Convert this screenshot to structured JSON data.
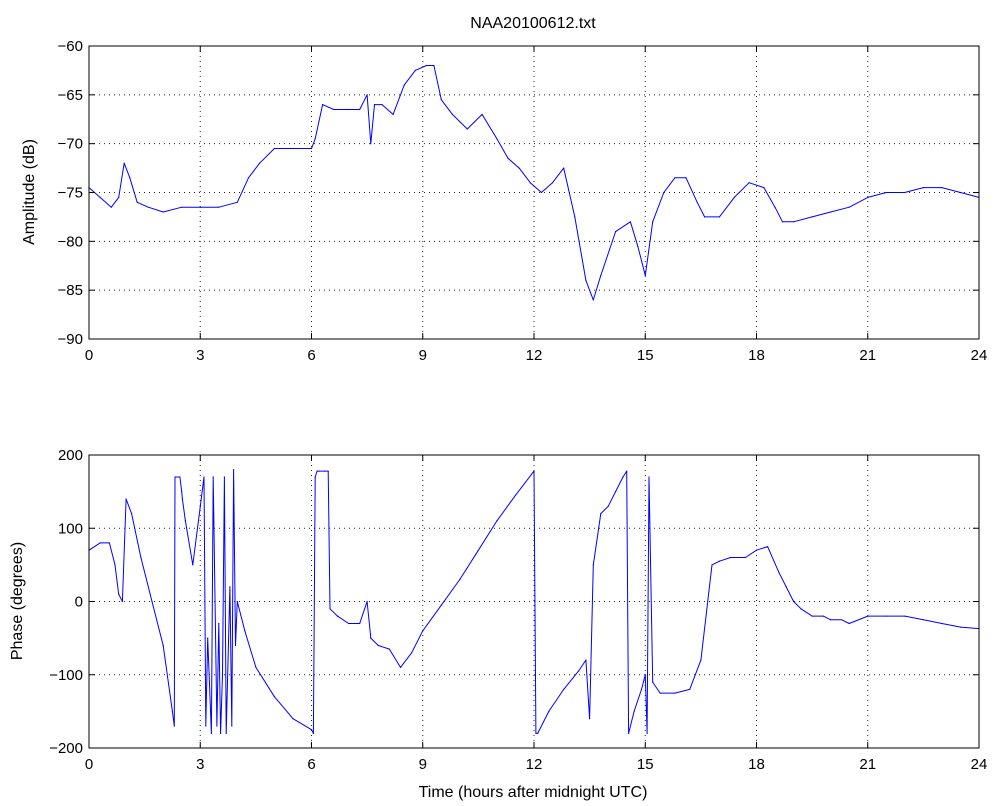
{
  "figure": {
    "title": "NAA20100612.txt"
  },
  "chart_data": [
    {
      "type": "line",
      "title": "NAA20100612.txt",
      "xlabel": "",
      "ylabel": "Amplitude (dB)",
      "xlim": [
        0,
        24
      ],
      "ylim": [
        -90,
        -60
      ],
      "xticks": [
        0,
        3,
        6,
        9,
        12,
        15,
        18,
        21,
        24
      ],
      "yticks": [
        -90,
        -85,
        -80,
        -75,
        -70,
        -65,
        -60
      ],
      "grid": true,
      "color": "#0000ff",
      "series": [
        {
          "x": [
            0,
            0.3,
            0.6,
            0.8,
            0.95,
            1.1,
            1.3,
            1.6,
            2.0,
            2.5,
            3.0,
            3.5,
            4.0,
            4.3,
            4.6,
            5.0,
            5.5,
            6.0,
            6.1,
            6.3,
            6.6,
            7.0,
            7.3,
            7.5,
            7.6,
            7.7,
            7.9,
            8.2,
            8.5,
            8.8,
            9.1,
            9.3,
            9.5,
            9.8,
            10.2,
            10.6,
            11.0,
            11.3,
            11.6,
            11.9,
            12.2,
            12.5,
            12.8,
            13.1,
            13.4,
            13.6,
            13.8,
            14.2,
            14.6,
            14.8,
            15.0,
            15.2,
            15.5,
            15.8,
            16.1,
            16.4,
            16.6,
            17.0,
            17.4,
            17.8,
            18.2,
            18.5,
            18.7,
            19.0,
            19.5,
            20.0,
            20.5,
            21.0,
            21.5,
            22.0,
            22.5,
            23.0,
            23.5,
            24.0
          ],
          "values": [
            -74.5,
            -75.5,
            -76.5,
            -75.5,
            -72,
            -73.5,
            -76,
            -76.5,
            -77,
            -76.5,
            -76.5,
            -76.5,
            -76,
            -73.5,
            -72,
            -70.5,
            -70.5,
            -70.5,
            -69.5,
            -66,
            -66.5,
            -66.5,
            -66.5,
            -65,
            -70,
            -66,
            -66,
            -67,
            -64,
            -62.5,
            -62,
            -62,
            -65.5,
            -67,
            -68.5,
            -67,
            -69.5,
            -71.5,
            -72.5,
            -74,
            -75,
            -74,
            -72.5,
            -77.5,
            -84,
            -86,
            -83.5,
            -79,
            -78,
            -80.5,
            -83.5,
            -78,
            -75,
            -73.5,
            -73.5,
            -76,
            -77.5,
            -77.5,
            -75.5,
            -74,
            -74.5,
            -76.5,
            -78,
            -78,
            -77.5,
            -77,
            -76.5,
            -75.5,
            -75,
            -75,
            -74.5,
            -74.5,
            -75,
            -75.5
          ]
        }
      ]
    },
    {
      "type": "line",
      "title": "",
      "xlabel": "Time (hours after midnight UTC)",
      "ylabel": "Phase (degrees)",
      "xlim": [
        0,
        24
      ],
      "ylim": [
        -200,
        200
      ],
      "xticks": [
        0,
        3,
        6,
        9,
        12,
        15,
        18,
        21,
        24
      ],
      "yticks": [
        -200,
        -100,
        0,
        100,
        200
      ],
      "grid": true,
      "color": "#0000ff",
      "series": [
        {
          "x": [
            0,
            0.3,
            0.55,
            0.7,
            0.8,
            0.9,
            1.0,
            1.15,
            1.4,
            1.7,
            2.0,
            2.25,
            2.3,
            2.32,
            2.45,
            2.5,
            2.52,
            2.6,
            2.8,
            3.0,
            3.1,
            3.15,
            3.2,
            3.3,
            3.35,
            3.45,
            3.5,
            3.55,
            3.6,
            3.65,
            3.7,
            3.8,
            3.85,
            3.9,
            3.95,
            4.0,
            4.2,
            4.5,
            5.0,
            5.5,
            6.0,
            6.05,
            6.1,
            6.15,
            6.2,
            6.35,
            6.45,
            6.5,
            6.7,
            7.0,
            7.3,
            7.5,
            7.6,
            7.8,
            8.1,
            8.4,
            8.7,
            9.0,
            9.5,
            10.0,
            10.5,
            11.0,
            11.5,
            12.0,
            12.05,
            12.1,
            12.4,
            12.8,
            13.2,
            13.4,
            13.5,
            13.6,
            13.8,
            14.0,
            14.2,
            14.4,
            14.5,
            14.55,
            14.7,
            14.9,
            15.0,
            15.05,
            15.1,
            15.2,
            15.4,
            15.8,
            16.2,
            16.5,
            16.8,
            17.0,
            17.3,
            17.7,
            18.0,
            18.3,
            18.6,
            18.8,
            19.0,
            19.2,
            19.5,
            19.8,
            20.0,
            20.3,
            20.5,
            21.0,
            21.5,
            22.0,
            22.5,
            23.0,
            23.5,
            24.0
          ],
          "values": [
            70,
            80,
            80,
            50,
            10,
            0,
            140,
            120,
            60,
            0,
            -60,
            -150,
            -170,
            170,
            170,
            150,
            140,
            110,
            50,
            130,
            170,
            -170,
            -50,
            -180,
            170,
            -170,
            -30,
            -180,
            -100,
            170,
            -180,
            20,
            -170,
            180,
            -60,
            0,
            -40,
            -90,
            -130,
            -160,
            -175,
            -180,
            170,
            178,
            178,
            178,
            178,
            -10,
            -20,
            -30,
            -30,
            0,
            -50,
            -60,
            -65,
            -90,
            -70,
            -40,
            -5,
            30,
            70,
            110,
            145,
            178,
            -180,
            -180,
            -150,
            -120,
            -95,
            -80,
            -160,
            50,
            120,
            130,
            150,
            170,
            178,
            -180,
            -150,
            -120,
            -100,
            -180,
            170,
            -110,
            -125,
            -125,
            -120,
            -80,
            50,
            55,
            60,
            60,
            70,
            75,
            40,
            20,
            0,
            -10,
            -20,
            -20,
            -25,
            -25,
            -30,
            -20,
            -20,
            -20,
            -25,
            -30,
            -35,
            -37
          ]
        }
      ]
    }
  ]
}
